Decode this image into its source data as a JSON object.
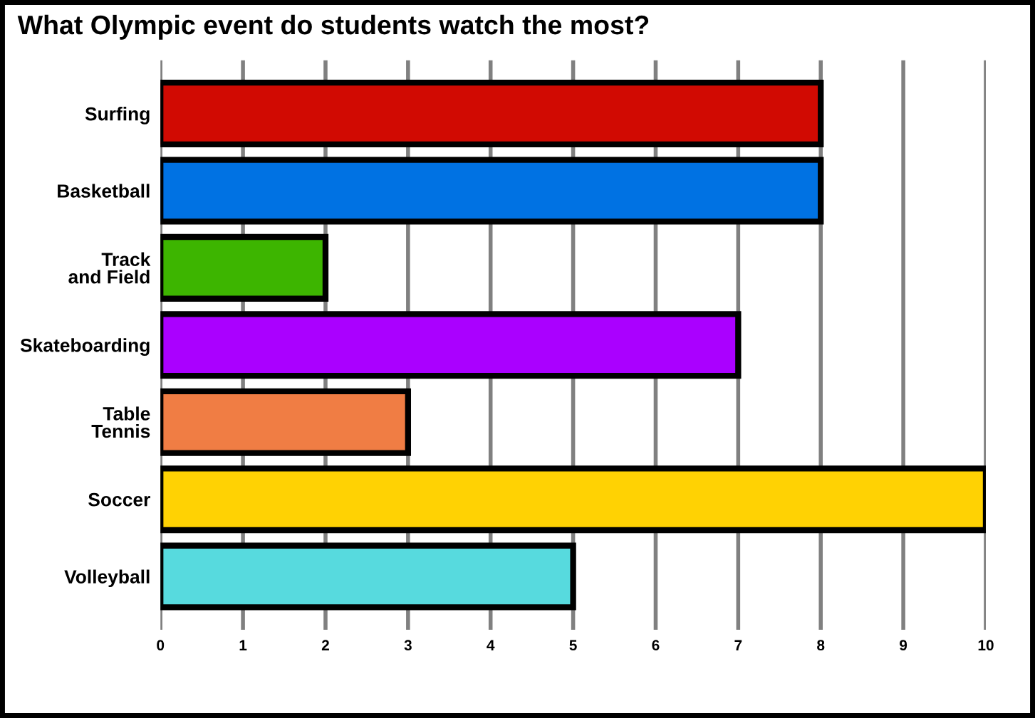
{
  "chart_data": {
    "type": "bar",
    "orientation": "horizontal",
    "title": "What Olympic event do students watch the most?",
    "categories": [
      "Surfing",
      "Basketball",
      "Track and Field",
      "Skateboarding",
      "Table Tennis",
      "Soccer",
      "Volleyball"
    ],
    "values": [
      8,
      8,
      2,
      7,
      3,
      10,
      5
    ],
    "colors": [
      "#d10a02",
      "#0072e3",
      "#3db500",
      "#aa00ff",
      "#f07d44",
      "#ffd203",
      "#57dade"
    ],
    "xlim": [
      0,
      10
    ],
    "xticks": [
      0,
      1,
      2,
      3,
      4,
      5,
      6,
      7,
      8,
      9,
      10
    ],
    "grid": "x",
    "legend": false
  }
}
